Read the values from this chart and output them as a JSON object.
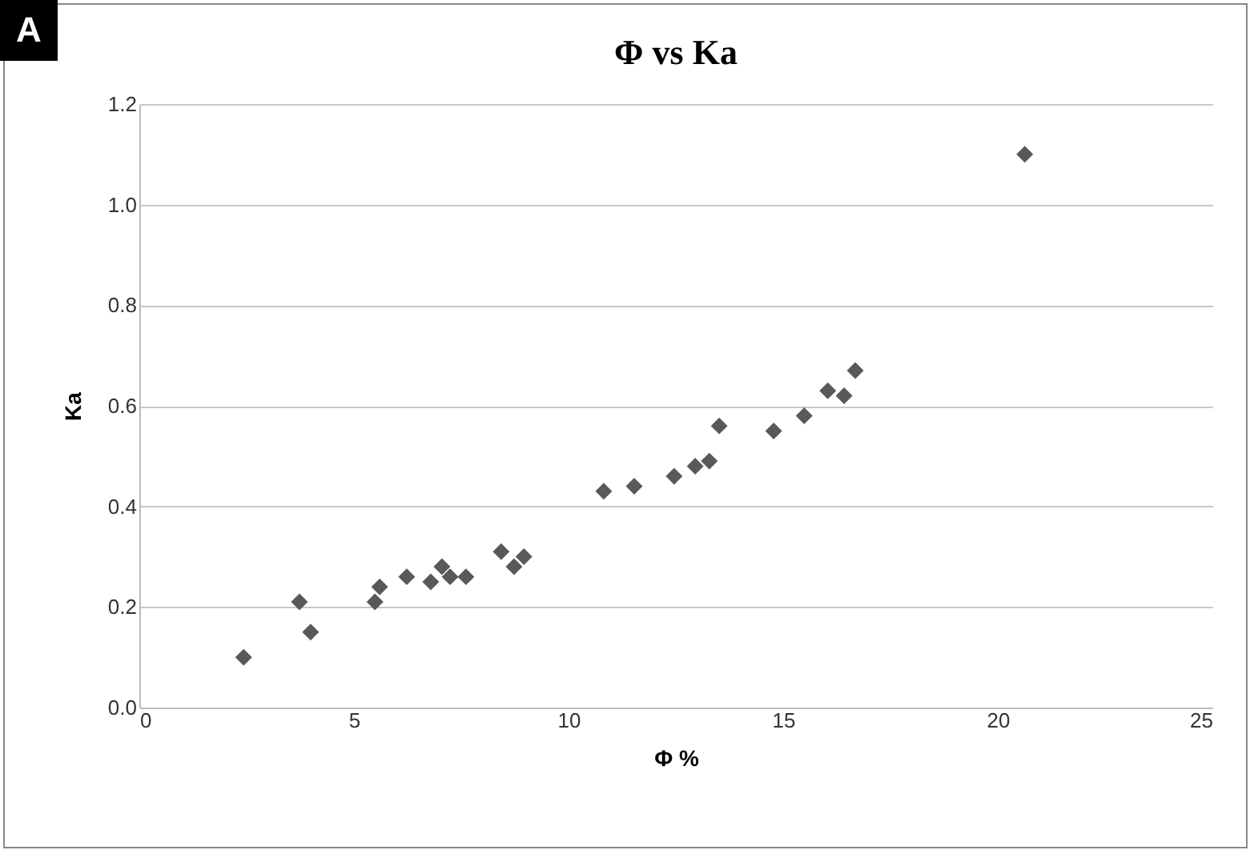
{
  "chart_data": {
    "type": "scatter",
    "title": "Φ vs Ka",
    "xlabel": "Φ %",
    "ylabel": "Ka",
    "annotations": [
      "A"
    ],
    "x": [
      2.43,
      3.73,
      3.99,
      5.49,
      5.6,
      6.23,
      6.79,
      7.05,
      7.24,
      7.61,
      8.43,
      8.73,
      8.96,
      10.82,
      11.53,
      12.46,
      12.95,
      13.28,
      13.51,
      14.78,
      15.49,
      16.04,
      16.42,
      16.68,
      20.63
    ],
    "series": [
      {
        "color": "#595959",
        "values": [
          0.1,
          0.21,
          0.15,
          0.21,
          0.24,
          0.26,
          0.25,
          0.28,
          0.26,
          0.26,
          0.31,
          0.28,
          0.3,
          0.43,
          0.44,
          0.46,
          0.48,
          0.49,
          0.56,
          0.55,
          0.58,
          0.63,
          0.62,
          0.67,
          1.1
        ]
      }
    ],
    "xlim": [
      0,
      25
    ],
    "xticks": [
      0,
      5,
      10,
      15,
      20,
      25
    ],
    "ylim": [
      0,
      1.2
    ],
    "yticks": [
      {
        "value": 0,
        "label": "0.0"
      },
      {
        "value": 0.2,
        "label": "0.2"
      },
      {
        "value": 0.4,
        "label": "0.4"
      },
      {
        "value": 0.6,
        "label": "0.6"
      },
      {
        "value": 0.8,
        "label": "0.8"
      },
      {
        "value": 1.0,
        "label": "1.0"
      },
      {
        "value": 1.2,
        "label": "1.2"
      }
    ],
    "grid": "y",
    "marker": "diamond",
    "legend": false
  }
}
